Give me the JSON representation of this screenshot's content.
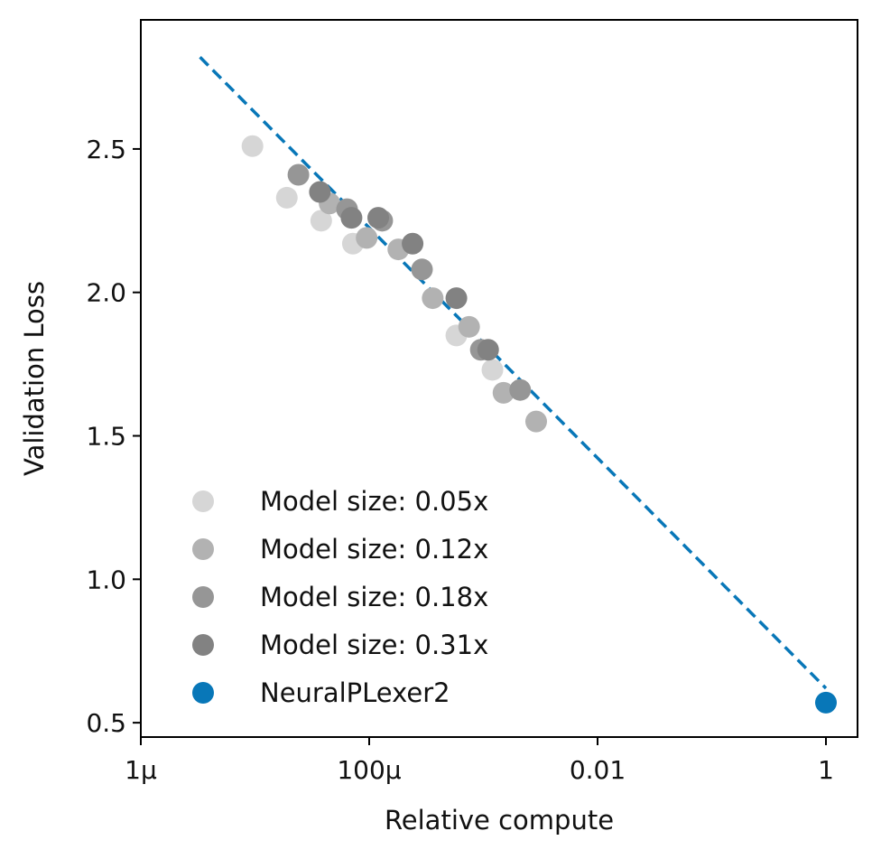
{
  "chart_data": {
    "type": "scatter",
    "xlabel": "Relative compute",
    "ylabel": "Validation Loss",
    "x_scale": "log",
    "xlim": [
      1e-06,
      1
    ],
    "ylim": [
      0.45,
      2.95
    ],
    "x_ticks": [
      {
        "value": 1e-06,
        "label": "1μ"
      },
      {
        "value": 0.0001,
        "label": "100μ"
      },
      {
        "value": 0.01,
        "label": "0.01"
      },
      {
        "value": 1,
        "label": "1"
      }
    ],
    "y_ticks": [
      {
        "value": 0.5,
        "label": "0.5"
      },
      {
        "value": 1.0,
        "label": "1.0"
      },
      {
        "value": 1.5,
        "label": "1.5"
      },
      {
        "value": 2.0,
        "label": "2.0"
      },
      {
        "value": 2.5,
        "label": "2.5"
      }
    ],
    "grid": false,
    "legend_position": "lower-left",
    "series": [
      {
        "name": "Model size: 0.05x",
        "color": "#d6d6d6",
        "points": [
          {
            "x": 9.5e-06,
            "y": 2.51
          },
          {
            "x": 1.9e-05,
            "y": 2.33
          },
          {
            "x": 3.8e-05,
            "y": 2.25
          },
          {
            "x": 7.2e-05,
            "y": 2.17
          },
          {
            "x": 0.00058,
            "y": 1.85
          },
          {
            "x": 0.0012,
            "y": 1.73
          }
        ]
      },
      {
        "name": "Model size: 0.12x",
        "color": "#b2b2b2",
        "points": [
          {
            "x": 4.5e-05,
            "y": 2.31
          },
          {
            "x": 9.5e-05,
            "y": 2.19
          },
          {
            "x": 0.00018,
            "y": 2.15
          },
          {
            "x": 0.00036,
            "y": 1.98
          },
          {
            "x": 0.00075,
            "y": 1.88
          },
          {
            "x": 0.0015,
            "y": 1.65
          },
          {
            "x": 0.0029,
            "y": 1.55
          }
        ]
      },
      {
        "name": "Model size: 0.18x",
        "color": "#969696",
        "points": [
          {
            "x": 2.4e-05,
            "y": 2.41
          },
          {
            "x": 6.4e-05,
            "y": 2.29
          },
          {
            "x": 0.00013,
            "y": 2.25
          },
          {
            "x": 0.00029,
            "y": 2.08
          },
          {
            "x": 0.00095,
            "y": 1.8
          },
          {
            "x": 0.0021,
            "y": 1.66
          }
        ]
      },
      {
        "name": "Model size: 0.31x",
        "color": "#828282",
        "points": [
          {
            "x": 3.7e-05,
            "y": 2.35
          },
          {
            "x": 7e-05,
            "y": 2.26
          },
          {
            "x": 0.00012,
            "y": 2.26
          },
          {
            "x": 0.00024,
            "y": 2.17
          },
          {
            "x": 0.00058,
            "y": 1.98
          },
          {
            "x": 0.0011,
            "y": 1.8
          }
        ]
      },
      {
        "name": "NeuralPLexer2",
        "color": "#0877b8",
        "points": [
          {
            "x": 1,
            "y": 0.57
          }
        ]
      }
    ],
    "fit_line": {
      "color": "#0877b8",
      "style": "dashed",
      "x": [
        3.3e-06,
        1
      ],
      "y": [
        2.82,
        0.62
      ]
    }
  }
}
